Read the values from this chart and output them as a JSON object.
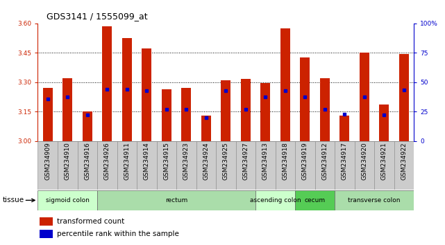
{
  "title": "GDS3141 / 1555099_at",
  "samples": [
    "GSM234909",
    "GSM234910",
    "GSM234916",
    "GSM234926",
    "GSM234911",
    "GSM234914",
    "GSM234915",
    "GSM234923",
    "GSM234924",
    "GSM234925",
    "GSM234927",
    "GSM234913",
    "GSM234918",
    "GSM234919",
    "GSM234912",
    "GSM234917",
    "GSM234920",
    "GSM234921",
    "GSM234922"
  ],
  "bar_values": [
    3.27,
    3.32,
    3.15,
    3.585,
    3.525,
    3.47,
    3.265,
    3.27,
    3.13,
    3.31,
    3.315,
    3.295,
    3.575,
    3.425,
    3.32,
    3.13,
    3.45,
    3.185,
    3.445
  ],
  "percentile_values": [
    3.215,
    3.225,
    3.133,
    3.265,
    3.265,
    3.255,
    3.162,
    3.162,
    3.118,
    3.255,
    3.162,
    3.225,
    3.255,
    3.225,
    3.162,
    3.137,
    3.225,
    3.133,
    3.26
  ],
  "ylim_left": [
    3.0,
    3.6
  ],
  "ylim_right": [
    0,
    100
  ],
  "yticks_left": [
    3.0,
    3.15,
    3.3,
    3.45,
    3.6
  ],
  "yticks_right": [
    0,
    25,
    50,
    75,
    100
  ],
  "grid_values": [
    3.15,
    3.3,
    3.45
  ],
  "tissue_groups": [
    {
      "label": "sigmoid colon",
      "start": 0,
      "end": 3,
      "color": "#ccffcc"
    },
    {
      "label": "rectum",
      "start": 3,
      "end": 11,
      "color": "#aaddaa"
    },
    {
      "label": "ascending colon",
      "start": 11,
      "end": 13,
      "color": "#ccffcc"
    },
    {
      "label": "cecum",
      "start": 13,
      "end": 15,
      "color": "#55cc55"
    },
    {
      "label": "transverse colon",
      "start": 15,
      "end": 19,
      "color": "#aaddaa"
    }
  ],
  "bar_color": "#cc2200",
  "marker_color": "#0000cc",
  "axis_color_left": "#cc2200",
  "axis_color_right": "#0000cc",
  "sample_bg": "#cccccc",
  "title_fontsize": 9,
  "tick_fontsize": 6.5,
  "tissue_fontsize": 6.5,
  "legend_fontsize": 7.5,
  "bar_width": 0.5
}
